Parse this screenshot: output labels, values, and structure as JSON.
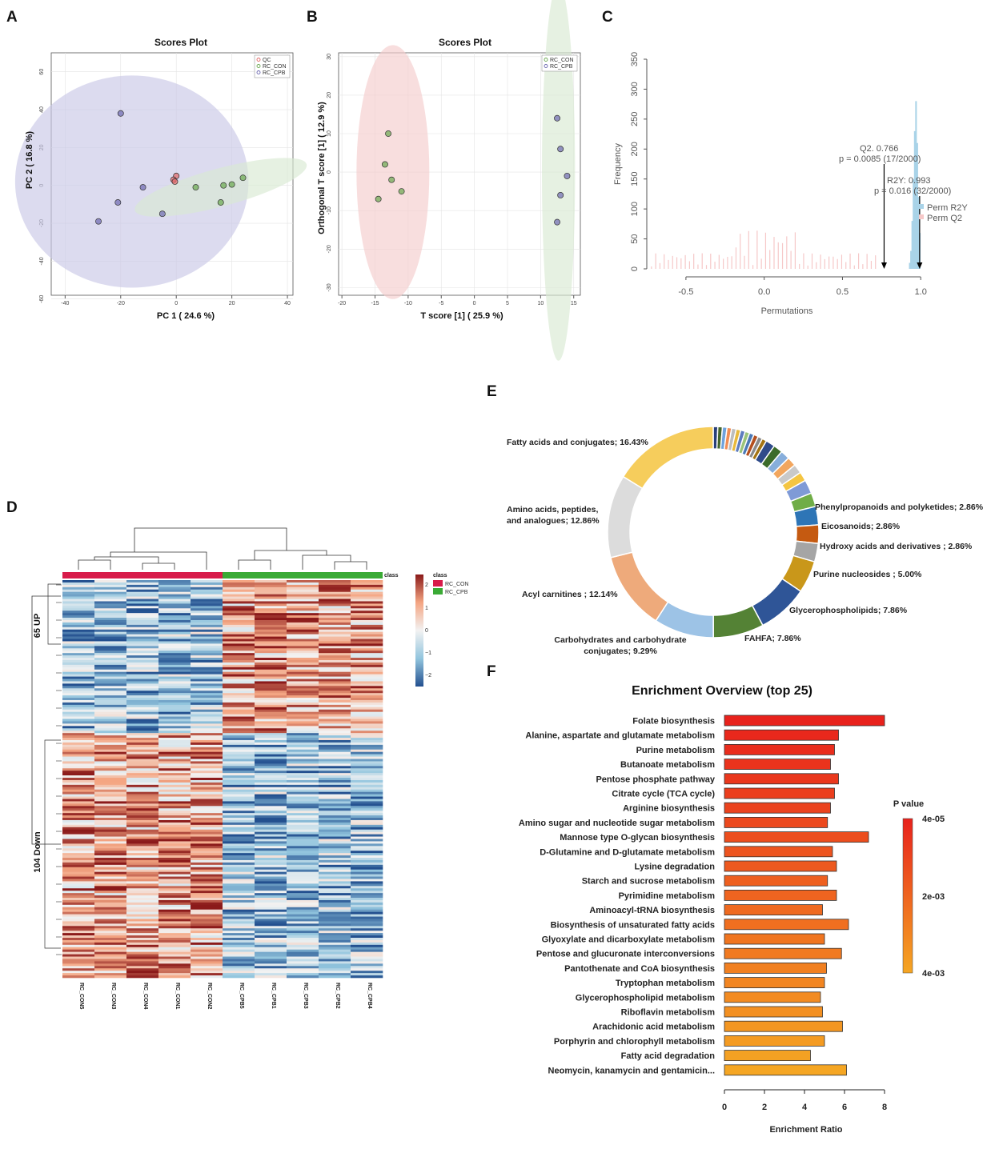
{
  "panels": {
    "a": "A",
    "b": "B",
    "c": "C",
    "d": "D",
    "e": "E",
    "f": "F"
  },
  "colors": {
    "qc": "#e06767",
    "con": "#6aa84f",
    "cpb": "#6c68b0",
    "ellipse_con": "#d9ead3",
    "ellipse_cpb": "#c9c8e6",
    "ellipse_red": "#f4cccc",
    "heat_low": "#23508f",
    "heat_mid": "#f2f2f2",
    "heat_high": "#8b1a1a",
    "class_con": "#d81b4a",
    "class_cpb": "#3aaa35",
    "perm_r2y": "#a9d3e8",
    "perm_q2": "#f6c8c8"
  },
  "chart_data": [
    {
      "type": "scatter",
      "title": "Scores Plot",
      "xlabel": "PC 1 ( 24.6 %)",
      "ylabel": "PC 2 ( 16.8 %)",
      "xlim": [
        -45,
        42
      ],
      "ylim": [
        -58,
        70
      ],
      "xticks": [
        -40,
        -20,
        0,
        20,
        40
      ],
      "yticks": [
        60,
        40,
        20,
        0,
        -20,
        -40,
        -60
      ],
      "legend": [
        "QC",
        "RC_CON",
        "RC_CPB"
      ],
      "series": [
        {
          "name": "QC",
          "x": [
            0,
            -1,
            -0.5
          ],
          "y": [
            5,
            3,
            2
          ]
        },
        {
          "name": "RC_CON",
          "x": [
            7,
            17,
            20,
            24,
            16
          ],
          "y": [
            -1,
            0,
            0.5,
            4,
            -9
          ]
        },
        {
          "name": "RC_CPB",
          "x": [
            -20,
            -12,
            -21,
            -5,
            -28
          ],
          "y": [
            38,
            -1,
            -9,
            -15,
            -19
          ]
        }
      ],
      "ellipses": [
        {
          "group": "RC_CPB",
          "cx": -16,
          "cy": 2,
          "rx": 42,
          "ry": 56
        },
        {
          "group": "RC_CON",
          "cx": 16,
          "cy": -1,
          "rx": 32,
          "ry": 10,
          "angle": -15
        }
      ]
    },
    {
      "type": "scatter",
      "title": "Scores Plot",
      "xlabel": "T score [1] ( 25.9 %)",
      "ylabel": "Orthogonal T score [1] ( 12.9 %)",
      "xlim": [
        -20.5,
        16
      ],
      "ylim": [
        -32,
        31
      ],
      "xticks": [
        -20,
        -15,
        -10,
        -5,
        0,
        5,
        10,
        15
      ],
      "yticks": [
        30,
        20,
        10,
        0,
        -10,
        -20,
        -30
      ],
      "legend": [
        "RC_CON",
        "RC_CPB"
      ],
      "series": [
        {
          "name": "RC_CON",
          "x": [
            -13,
            -13.5,
            -12.5,
            -11,
            -14.5
          ],
          "y": [
            10,
            2,
            -2,
            -5,
            -7
          ]
        },
        {
          "name": "RC_CPB",
          "x": [
            12.5,
            13,
            14,
            13,
            12.5
          ],
          "y": [
            14,
            6,
            -1,
            -6,
            -13
          ]
        }
      ],
      "ellipses": [
        {
          "group": "RC_CON",
          "cx": -12.3,
          "cy": 0,
          "rx": 5.5,
          "ry": 33
        },
        {
          "group": "RC_CPB",
          "cx": 12.7,
          "cy": 0,
          "rx": 2.5,
          "ry": 49
        }
      ]
    },
    {
      "type": "bar",
      "title": "",
      "xlabel": "Permutations",
      "ylabel": "Frequency",
      "xlim": [
        -0.75,
        1.05
      ],
      "ylim": [
        0,
        350
      ],
      "xticks": [
        -0.5,
        0.0,
        0.5,
        1.0
      ],
      "xtick_labels": [
        "-0.5",
        "0.0",
        "0.5",
        "1.0"
      ],
      "yticks": [
        0,
        50,
        100,
        150,
        200,
        250,
        300,
        350
      ],
      "legend": [
        "Perm R2Y",
        "Perm Q2"
      ],
      "annotations": [
        {
          "line1": "Q2. 0.766",
          "line2": "p = 0.0085 (17/2000)",
          "x": 0.766
        },
        {
          "line1": "R2Y: 0.993",
          "line2": "p = 0.016 (32/2000)",
          "x": 0.993
        }
      ]
    },
    {
      "type": "heatmap",
      "columns": [
        "RC_CON5",
        "RC_CON3",
        "RC_CON4",
        "RC_CON1",
        "RC_CON2",
        "RC_CPB5",
        "RC_CPB1",
        "RC_CPB3",
        "RC_CPB2",
        "RC_CPB4"
      ],
      "row_groups": [
        "65 UP",
        "104 Down"
      ],
      "scale_ticks": [
        "2",
        "1",
        "0",
        "−1",
        "−2"
      ],
      "legend_title": "class",
      "legend_items": [
        "RC_CON",
        "RC_CPB"
      ],
      "class_label": "class"
    },
    {
      "type": "pie",
      "labels": [
        "Fatty acids and conjugates; 16.43%",
        "Amino acids, peptides, and analogues; 12.86%",
        "Acyl carnitines ; 12.14%",
        "Carbohydrates and carbohydrate conjugates; 9.29%",
        "FAHFA; 7.86%",
        "Glycerophospholipids; 7.86%",
        "Purine nucleosides ; 5.00%",
        "Hydroxy acids and derivatives ; 2.86%",
        "Eicosanoids; 2.86%",
        "Phenylpropanoids and polyketides; 2.86%"
      ],
      "values": [
        16.43,
        12.86,
        12.14,
        9.29,
        7.86,
        7.86,
        5.0,
        2.86,
        2.86,
        2.86
      ],
      "other_values": [
        2.14,
        2.14,
        1.43,
        1.43,
        1.43,
        1.43,
        1.43,
        1.43,
        0.71,
        0.71,
        0.71,
        0.71,
        0.71,
        0.71,
        0.71,
        0.71,
        0.71,
        0.71,
        0.71,
        0.71
      ]
    },
    {
      "type": "bar",
      "title": "Enrichment Overview (top 25)",
      "xlabel": "Enrichment Ratio",
      "ylabel": "",
      "xlim": [
        0,
        8
      ],
      "xticks": [
        0,
        2,
        4,
        6,
        8
      ],
      "legend_title": "P value",
      "legend_ticks": [
        "4e-05",
        "2e-03",
        "4e-03"
      ],
      "categories": [
        "Folate biosynthesis",
        "Alanine, aspartate and glutamate metabolism",
        "Purine metabolism",
        "Butanoate metabolism",
        "Pentose phosphate pathway",
        "Citrate cycle (TCA cycle)",
        "Arginine biosynthesis",
        "Amino sugar and nucleotide sugar metabolism",
        "Mannose type O-glycan biosynthesis",
        "D-Glutamine and D-glutamate metabolism",
        "Lysine degradation",
        "Starch and sucrose metabolism",
        "Pyrimidine metabolism",
        "Aminoacyl-tRNA biosynthesis",
        "Biosynthesis of unsaturated fatty acids",
        "Glyoxylate and dicarboxylate metabolism",
        "Pentose and glucuronate interconversions",
        "Pantothenate and CoA biosynthesis",
        "Tryptophan metabolism",
        "Glycerophospholipid metabolism",
        "Riboflavin metabolism",
        "Arachidonic acid metabolism",
        "Porphyrin and chlorophyll metabolism",
        "Fatty acid degradation",
        "Neomycin, kanamycin and gentamicin..."
      ],
      "values": [
        8.0,
        5.7,
        5.5,
        5.3,
        5.7,
        5.5,
        5.3,
        5.15,
        7.2,
        5.4,
        5.6,
        5.15,
        5.6,
        4.9,
        6.2,
        5.0,
        5.85,
        5.1,
        5.0,
        4.8,
        4.9,
        5.9,
        5.0,
        4.3,
        6.1
      ]
    }
  ]
}
